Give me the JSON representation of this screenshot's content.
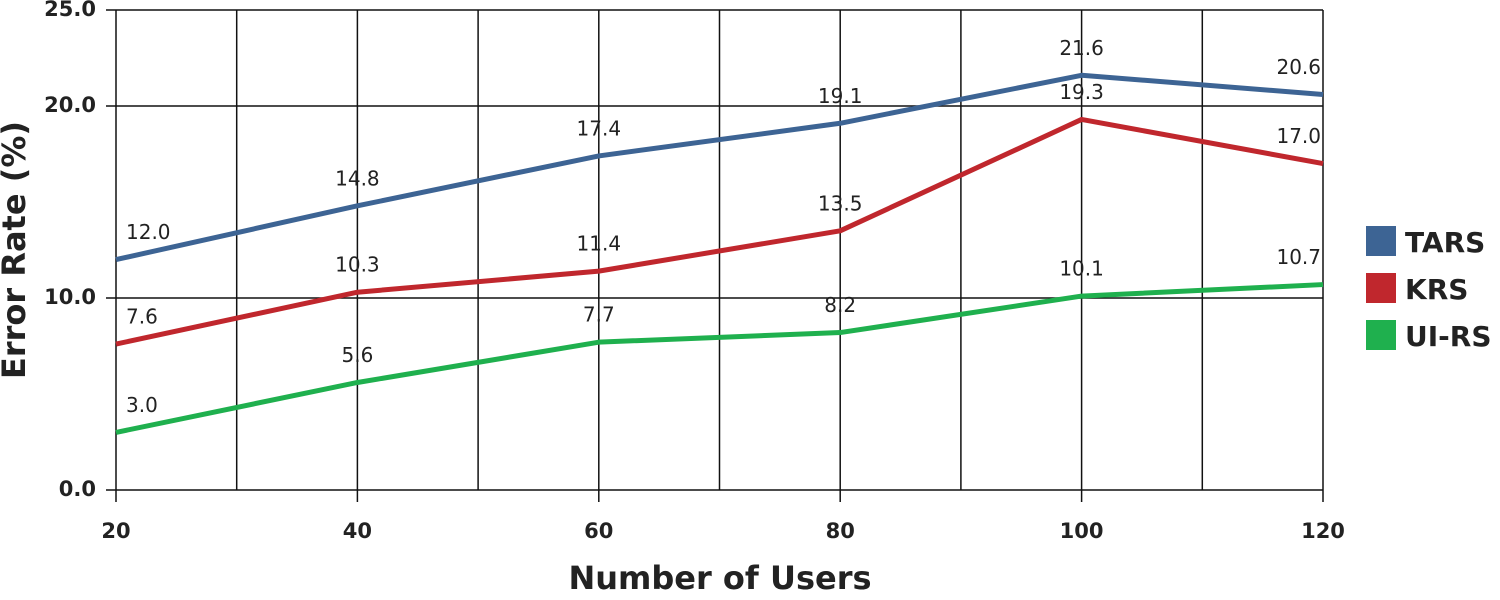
{
  "chart_data": {
    "type": "line",
    "x_label": "Number of Users",
    "y_label": "Error Rate (%)",
    "x": [
      20,
      40,
      60,
      80,
      100,
      120
    ],
    "xlim": [
      20,
      120
    ],
    "xticks": [
      20,
      40,
      60,
      80,
      100,
      120
    ],
    "xminor_grid": [
      30,
      50,
      70,
      90,
      110
    ],
    "ylim": [
      0,
      25
    ],
    "yticks": [
      {
        "value": 0,
        "label": "0.0"
      },
      {
        "value": 10,
        "label": "10.0"
      },
      {
        "value": 20,
        "label": "20.0"
      },
      {
        "value": 25,
        "label": "25.0"
      }
    ],
    "grid": true,
    "legend": "right",
    "series": [
      {
        "name": "TARS",
        "color": "#3d6494",
        "values": [
          12.0,
          14.8,
          17.4,
          19.1,
          21.6,
          20.6
        ],
        "value_labels": [
          "12.0",
          "14.8",
          "17.4",
          "19.1",
          "21.6",
          "20.6"
        ]
      },
      {
        "name": "KRS",
        "color": "#c0272d",
        "values": [
          7.6,
          10.3,
          11.4,
          13.5,
          19.3,
          17.0
        ],
        "value_labels": [
          "7.6",
          "10.3",
          "11.4",
          "13.5",
          "19.3",
          "17.0"
        ]
      },
      {
        "name": "UI-RS",
        "color": "#1fb04e",
        "values": [
          3.0,
          5.6,
          7.7,
          8.2,
          10.1,
          10.7
        ],
        "value_labels": [
          "3.0",
          "5.6",
          "7.7",
          "8.2",
          "10.1",
          "10.7"
        ]
      }
    ]
  }
}
